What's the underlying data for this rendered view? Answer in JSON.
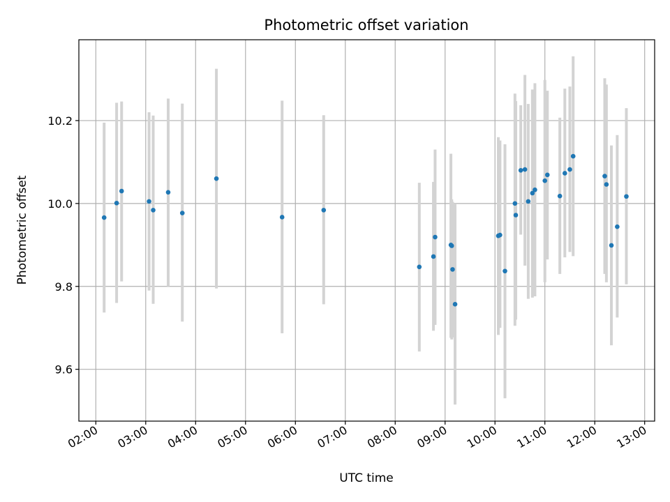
{
  "chart_data": {
    "type": "scatter",
    "title": "Photometric offset variation",
    "xlabel": "UTC time",
    "ylabel": "Photometric offset",
    "x_tick_labels": [
      "02:00",
      "03:00",
      "04:00",
      "05:00",
      "06:00",
      "07:00",
      "08:00",
      "09:00",
      "10:00",
      "11:00",
      "12:00",
      "13:00"
    ],
    "x_tick_values_hours": [
      2,
      3,
      4,
      5,
      6,
      7,
      8,
      9,
      10,
      11,
      12,
      13
    ],
    "y_ticks": [
      9.6,
      9.8,
      10.0,
      10.2
    ],
    "y_tick_labels": [
      "9.6",
      "9.8",
      "10.0",
      "10.2"
    ],
    "xlim_hours": [
      1.66,
      13.2
    ],
    "ylim": [
      9.475,
      10.395
    ],
    "grid": true,
    "point_color": "#1f77b4",
    "errorbar_color": "#d3d3d3",
    "points": [
      {
        "t": "02:10",
        "y": 9.966,
        "lo": 9.737,
        "hi": 10.195
      },
      {
        "t": "02:25",
        "y": 10.001,
        "lo": 9.76,
        "hi": 10.243
      },
      {
        "t": "02:31",
        "y": 10.03,
        "lo": 9.812,
        "hi": 10.246
      },
      {
        "t": "03:04",
        "y": 10.005,
        "lo": 9.79,
        "hi": 10.22
      },
      {
        "t": "03:09",
        "y": 9.984,
        "lo": 9.758,
        "hi": 10.212
      },
      {
        "t": "03:27",
        "y": 10.027,
        "lo": 9.8,
        "hi": 10.253
      },
      {
        "t": "03:44",
        "y": 9.977,
        "lo": 9.715,
        "hi": 10.241
      },
      {
        "t": "04:25",
        "y": 10.06,
        "lo": 9.795,
        "hi": 10.325
      },
      {
        "t": "05:44",
        "y": 9.967,
        "lo": 9.687,
        "hi": 10.248
      },
      {
        "t": "06:34",
        "y": 9.984,
        "lo": 9.757,
        "hi": 10.213
      },
      {
        "t": "08:29",
        "y": 9.847,
        "lo": 9.643,
        "hi": 10.05
      },
      {
        "t": "08:46",
        "y": 9.872,
        "lo": 9.693,
        "hi": 10.052
      },
      {
        "t": "08:48",
        "y": 9.919,
        "lo": 9.707,
        "hi": 10.13
      },
      {
        "t": "09:07",
        "y": 9.9,
        "lo": 9.676,
        "hi": 10.12
      },
      {
        "t": "09:08",
        "y": 9.898,
        "lo": 9.672,
        "hi": 10.01
      },
      {
        "t": "09:09",
        "y": 9.841,
        "lo": 9.677,
        "hi": 10.004
      },
      {
        "t": "09:12",
        "y": 9.757,
        "lo": 9.515,
        "hi": 10.0
      },
      {
        "t": "10:04",
        "y": 9.922,
        "lo": 9.683,
        "hi": 10.16
      },
      {
        "t": "10:06",
        "y": 9.924,
        "lo": 9.7,
        "hi": 10.152
      },
      {
        "t": "10:12",
        "y": 9.837,
        "lo": 9.53,
        "hi": 10.143
      },
      {
        "t": "10:24",
        "y": 10.0,
        "lo": 9.705,
        "hi": 10.265
      },
      {
        "t": "10:25",
        "y": 9.972,
        "lo": 9.72,
        "hi": 10.247
      },
      {
        "t": "10:31",
        "y": 10.08,
        "lo": 9.925,
        "hi": 10.237
      },
      {
        "t": "10:36",
        "y": 10.082,
        "lo": 9.85,
        "hi": 10.31
      },
      {
        "t": "10:40",
        "y": 10.005,
        "lo": 9.77,
        "hi": 10.24
      },
      {
        "t": "10:45",
        "y": 10.025,
        "lo": 9.773,
        "hi": 10.275
      },
      {
        "t": "10:48",
        "y": 10.033,
        "lo": 9.776,
        "hi": 10.29
      },
      {
        "t": "11:00",
        "y": 10.055,
        "lo": 9.81,
        "hi": 10.298
      },
      {
        "t": "11:03",
        "y": 10.069,
        "lo": 9.865,
        "hi": 10.272
      },
      {
        "t": "11:18",
        "y": 10.018,
        "lo": 9.83,
        "hi": 10.207
      },
      {
        "t": "11:24",
        "y": 10.073,
        "lo": 9.87,
        "hi": 10.277
      },
      {
        "t": "11:30",
        "y": 10.082,
        "lo": 9.883,
        "hi": 10.282
      },
      {
        "t": "11:34",
        "y": 10.114,
        "lo": 9.873,
        "hi": 10.355
      },
      {
        "t": "12:12",
        "y": 10.066,
        "lo": 9.83,
        "hi": 10.302
      },
      {
        "t": "12:14",
        "y": 10.046,
        "lo": 9.81,
        "hi": 10.287
      },
      {
        "t": "12:20",
        "y": 9.899,
        "lo": 9.658,
        "hi": 10.14
      },
      {
        "t": "12:27",
        "y": 9.944,
        "lo": 9.725,
        "hi": 10.165
      },
      {
        "t": "12:38",
        "y": 10.017,
        "lo": 9.805,
        "hi": 10.23
      }
    ]
  }
}
